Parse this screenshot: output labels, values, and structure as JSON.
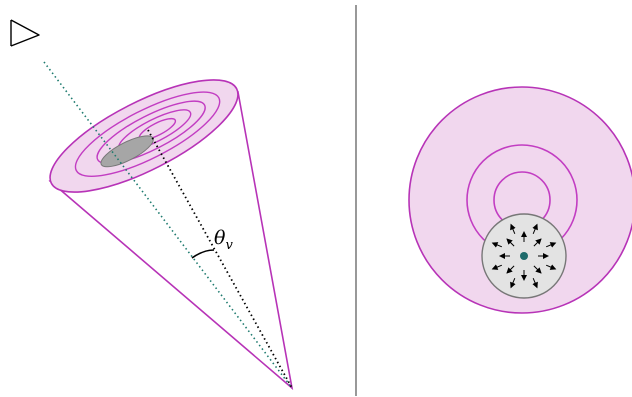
{
  "figure": {
    "angle_label": "θ",
    "angle_subscript": "v"
  },
  "colors": {
    "cone_stroke": "#b733b7",
    "cone_fill": "#f1d7ee",
    "inner_ring_stroke": "#c23dc2",
    "gray_patch": "#a6a6a6",
    "gray_disc": "#e3e3e3",
    "teal_center": "#1e6b6b",
    "dotted_teal": "#1d7a6e",
    "dotted_black": "#000000",
    "divider": "#555555"
  },
  "icons": {
    "viewer": "eye-icon",
    "center_point": "center-dot-icon"
  },
  "left_panel": {
    "description_labels": []
  },
  "right_panel": {
    "arrow_count": 16
  }
}
